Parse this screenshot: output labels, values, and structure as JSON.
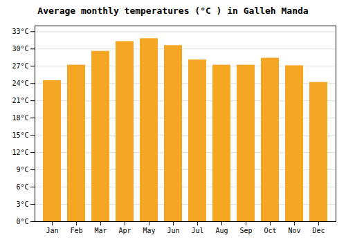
{
  "chart_data": {
    "type": "bar",
    "title": "Average monthly temperatures (°C ) in Galleh Manda",
    "categories": [
      "Jan",
      "Feb",
      "Mar",
      "Apr",
      "May",
      "Jun",
      "Jul",
      "Aug",
      "Sep",
      "Oct",
      "Nov",
      "Dec"
    ],
    "values": [
      24.5,
      27.2,
      29.6,
      31.3,
      31.8,
      30.6,
      28.1,
      27.2,
      27.2,
      28.4,
      27.1,
      24.2
    ],
    "color": "#F5A623",
    "ylim": [
      0,
      34
    ],
    "yticks": [
      {
        "value": 0,
        "label": "0°C"
      },
      {
        "value": 3,
        "label": "3°C"
      },
      {
        "value": 6,
        "label": "6°C"
      },
      {
        "value": 9,
        "label": "9°C"
      },
      {
        "value": 12,
        "label": "12°C"
      },
      {
        "value": 15,
        "label": "15°C"
      },
      {
        "value": 18,
        "label": "18°C"
      },
      {
        "value": 21,
        "label": "21°C"
      },
      {
        "value": 24,
        "label": "24°C"
      },
      {
        "value": 27,
        "label": "27°C"
      },
      {
        "value": 30,
        "label": "30°C"
      },
      {
        "value": 33,
        "label": "33°C"
      }
    ],
    "grid": true
  }
}
